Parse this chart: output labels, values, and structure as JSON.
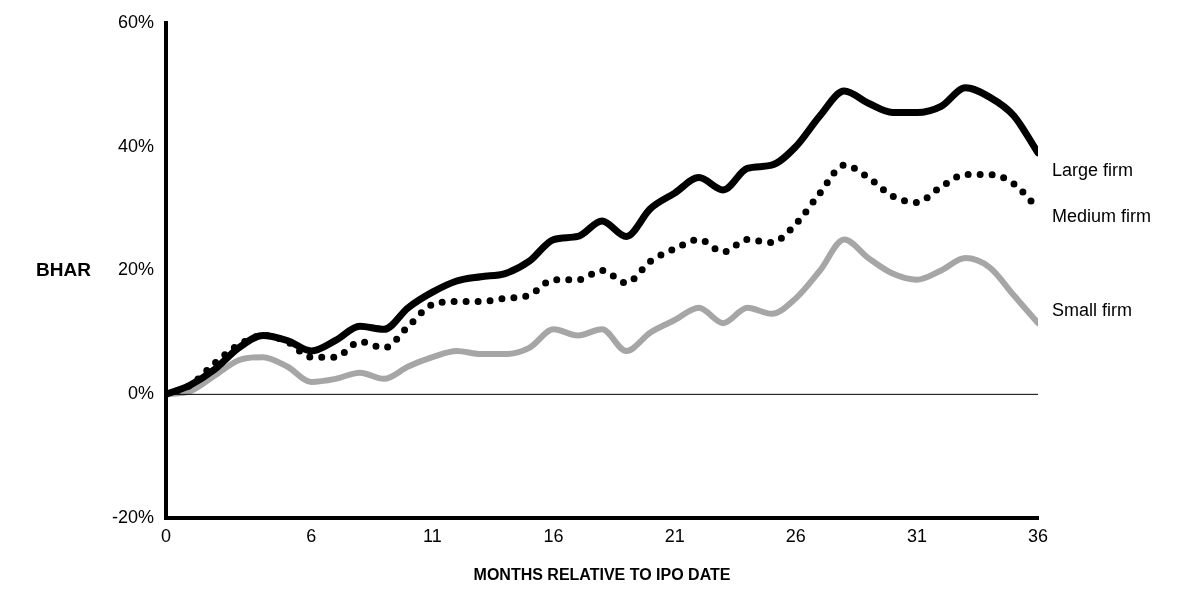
{
  "chart_data": {
    "type": "line",
    "xlabel": "MONTHS RELATIVE TO IPO DATE",
    "ylabel": "BHAR",
    "x": [
      0,
      1,
      2,
      3,
      4,
      5,
      6,
      7,
      8,
      9,
      10,
      11,
      12,
      13,
      14,
      15,
      16,
      17,
      18,
      19,
      20,
      21,
      22,
      23,
      24,
      25,
      26,
      27,
      28,
      29,
      30,
      31,
      32,
      33,
      34,
      35,
      36
    ],
    "series": [
      {
        "name": "Large firm",
        "color": "#000000",
        "line_style": "solid",
        "values": [
          0,
          1.5,
          4,
          7.5,
          9.5,
          8.7,
          7,
          8.7,
          11,
          10.5,
          14,
          16.5,
          18.3,
          19,
          19.5,
          21.5,
          25,
          25.5,
          28,
          25.5,
          30,
          32.5,
          35,
          33,
          36.5,
          37,
          40,
          45,
          49,
          47,
          45.5,
          45.5,
          46.5,
          49.5,
          48,
          45,
          39
        ]
      },
      {
        "name": "Medium firm",
        "color": "#000000",
        "line_style": "dotted",
        "values": [
          0,
          1.5,
          5,
          8,
          9.5,
          8.5,
          6,
          6,
          8.5,
          7.5,
          11,
          14.5,
          15,
          15,
          15.5,
          16,
          18.5,
          18.5,
          20,
          18,
          21.5,
          23.5,
          25,
          23,
          25,
          24.5,
          27.5,
          32.5,
          37,
          35,
          32,
          31,
          33.5,
          35.5,
          35.5,
          34,
          30
        ]
      },
      {
        "name": "Small firm",
        "color": "#a6a6a6",
        "line_style": "solid",
        "values": [
          0,
          0.5,
          3,
          5.5,
          6,
          4.5,
          2,
          2.5,
          3.5,
          2.5,
          4.5,
          6,
          7,
          6.5,
          6.5,
          7.5,
          10.5,
          9.5,
          10.5,
          7,
          10,
          12,
          14,
          11.5,
          14,
          13,
          15.5,
          20,
          25,
          22,
          19.5,
          18.5,
          20,
          22,
          20.5,
          16,
          11.5
        ]
      }
    ],
    "xlim": [
      0,
      36
    ],
    "xticks": [
      0,
      6,
      11,
      16,
      21,
      26,
      31,
      36
    ],
    "ylim": [
      -20,
      60
    ],
    "yticks": [
      {
        "value": -20,
        "label": "-20%"
      },
      {
        "value": 0,
        "label": "0%"
      },
      {
        "value": 20,
        "label": "20%"
      },
      {
        "value": 40,
        "label": "40%"
      },
      {
        "value": 60,
        "label": "60%"
      }
    ],
    "ref_lines": [
      {
        "axis": "y",
        "value": 0
      }
    ],
    "grid": false,
    "legend": false,
    "marker": "none"
  }
}
